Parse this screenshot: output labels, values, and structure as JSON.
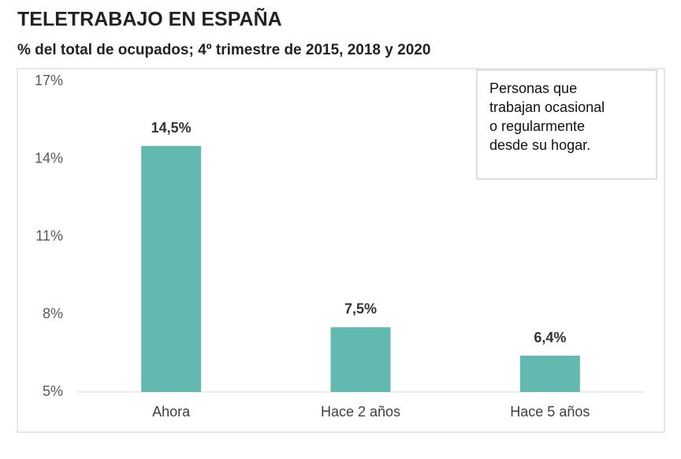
{
  "chart_data": {
    "type": "bar",
    "title": "TELETRABAJO EN ESPAÑA",
    "subtitle": "% del total de ocupados; 4º trimestre de 2015, 2018 y 2020",
    "categories": [
      "Ahora",
      "Hace 2 años",
      "Hace 5 años"
    ],
    "values": [
      14.5,
      7.5,
      6.4
    ],
    "value_labels": [
      "14,5%",
      "7,5%",
      "6,4%"
    ],
    "color": "#62b9b0",
    "ylim": [
      5,
      17
    ],
    "yticks": [
      {
        "value": 5,
        "label": "5%"
      },
      {
        "value": 8,
        "label": "8%"
      },
      {
        "value": 11,
        "label": "11%"
      },
      {
        "value": 14,
        "label": "14%"
      },
      {
        "value": 17,
        "label": "17%"
      }
    ],
    "grid": false,
    "annotation": [
      "Personas que",
      "trabajan ocasional",
      "o regularmente",
      "desde su hogar."
    ]
  }
}
